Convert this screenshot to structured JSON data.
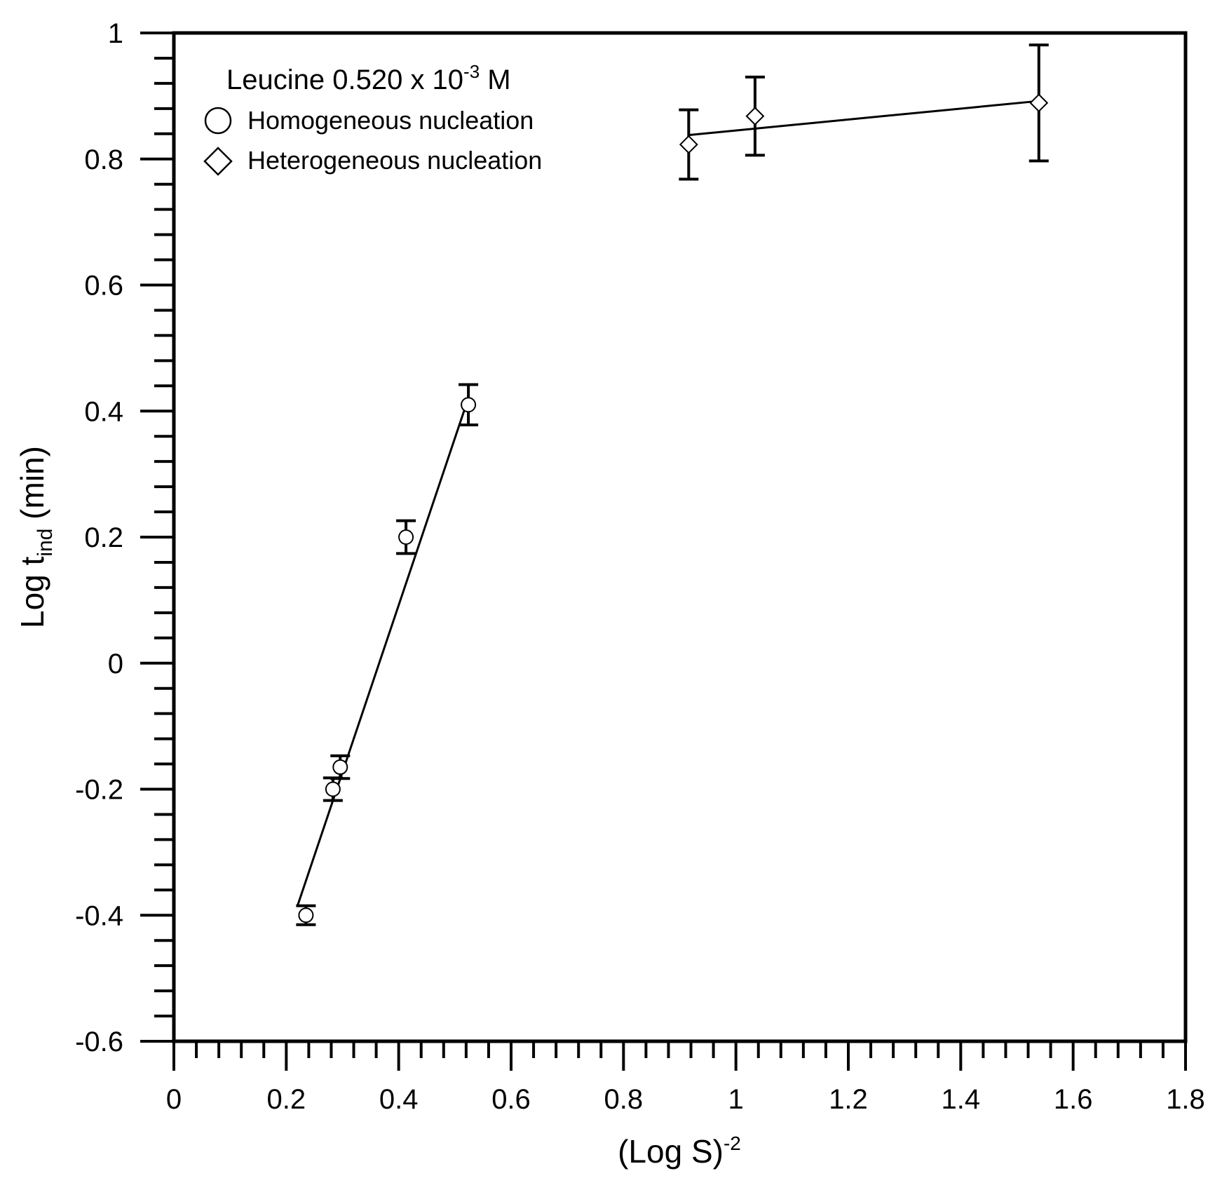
{
  "chart_data": {
    "type": "scatter",
    "title": "",
    "xlabel": {
      "main": "(Log S)",
      "sup": "-2"
    },
    "ylabel": {
      "main": "Log t",
      "sub": "ind",
      "rest": " (min)"
    },
    "xlim": [
      0,
      1.8
    ],
    "ylim": [
      -0.6,
      1.0
    ],
    "x_ticks": [
      "0",
      "0.2",
      "0.4",
      "0.6",
      "0.8",
      "1",
      "1.2",
      "1.4",
      "1.6",
      "1.8"
    ],
    "x_tick_values": [
      0,
      0.2,
      0.4,
      0.6,
      0.8,
      1.0,
      1.2,
      1.4,
      1.6,
      1.8
    ],
    "y_ticks": [
      "-0.6",
      "-0.4",
      "-0.2",
      "0",
      "0.2",
      "0.4",
      "0.6",
      "0.8",
      "1"
    ],
    "y_tick_values": [
      -0.6,
      -0.4,
      -0.2,
      0,
      0.2,
      0.4,
      0.6,
      0.8,
      1.0
    ],
    "grid": false,
    "legend": {
      "position": "top-left",
      "title": {
        "main": "Leucine 0.520 x 10",
        "sup": "-3",
        "rest": " M"
      }
    },
    "series": [
      {
        "name": "Homogeneous nucleation",
        "marker": "circle",
        "points": [
          {
            "x": 0.235,
            "y": -0.4,
            "err": 0.015
          },
          {
            "x": 0.283,
            "y": -0.2,
            "err": 0.018
          },
          {
            "x": 0.296,
            "y": -0.165,
            "err": 0.018
          },
          {
            "x": 0.413,
            "y": 0.2,
            "err": 0.026
          },
          {
            "x": 0.524,
            "y": 0.41,
            "err": 0.032
          }
        ],
        "fit": {
          "x": [
            0.22,
            0.52
          ],
          "y": [
            -0.385,
            0.41
          ]
        }
      },
      {
        "name": "Heterogeneous nucleation",
        "marker": "diamond",
        "points": [
          {
            "x": 0.916,
            "y": 0.823,
            "err": 0.055
          },
          {
            "x": 1.034,
            "y": 0.868,
            "err": 0.062
          },
          {
            "x": 1.539,
            "y": 0.889,
            "err": 0.092
          }
        ],
        "fit": {
          "x": [
            0.916,
            1.539
          ],
          "y": [
            0.838,
            0.892
          ]
        }
      }
    ]
  }
}
